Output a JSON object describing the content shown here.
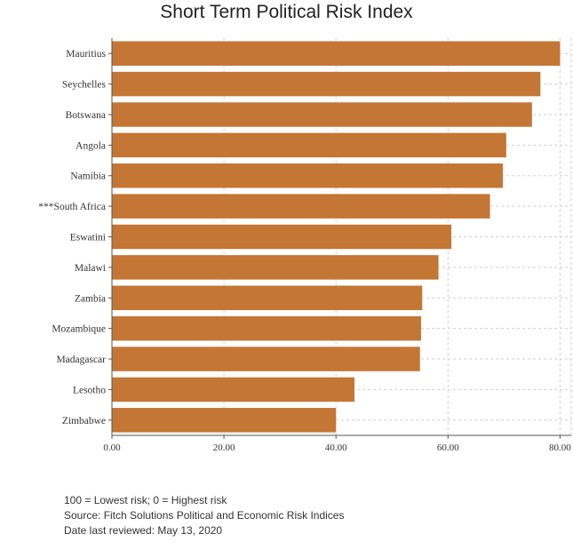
{
  "chart_data": {
    "type": "bar",
    "orientation": "horizontal",
    "title": "Short Term Political Risk Index",
    "xlabel": "",
    "ylabel": "",
    "categories": [
      "Mauritius",
      "Seychelles",
      "Botswana",
      "Angola",
      "Namibia",
      "***South Africa",
      "Eswatini",
      "Malawi",
      "Zambia",
      "Mozambique",
      "Madagascar",
      "Lesotho",
      "Zimbabwe"
    ],
    "values": [
      80.0,
      76.5,
      75.0,
      70.4,
      69.8,
      67.5,
      60.6,
      58.3,
      55.4,
      55.2,
      55.0,
      43.3,
      40.0
    ],
    "xlim": [
      0,
      82
    ],
    "xticks": [
      "0.00",
      "20.00",
      "40.00",
      "60.00",
      "80.00"
    ],
    "xtick_values": [
      0,
      20,
      40,
      60,
      80
    ],
    "grid": true,
    "legend": "none",
    "bar_color": "#c47634"
  },
  "notes": {
    "scale": "100 = Lowest risk; 0 = Highest risk",
    "source": "Source: Fitch Solutions Political and Economic Risk Indices",
    "reviewed": "Date last reviewed: May 13, 2020"
  }
}
